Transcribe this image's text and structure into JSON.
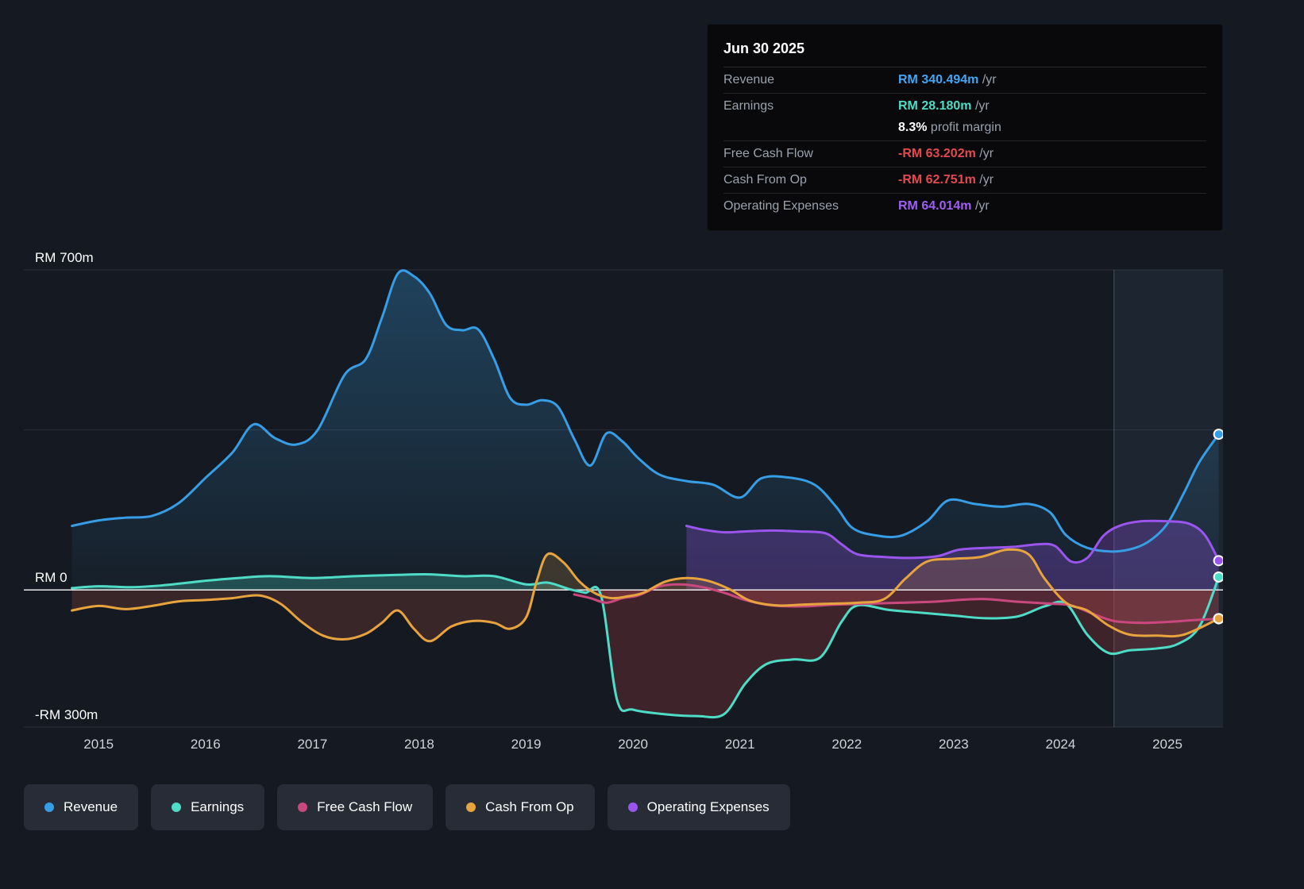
{
  "colors": {
    "background": "#151a22",
    "grid": "#2a303b",
    "zero_line": "#ffffff",
    "axis_text": "#ced3da",
    "y_label_text": "#ffffff",
    "muted_text": "#9aa2ad",
    "tooltip_bg": "#09090b",
    "pill_bg": "#272c36",
    "highlight_band": "rgba(110,150,200,0.09)",
    "highlight_edge": "rgba(210,225,240,0.25)"
  },
  "tooltip": {
    "date": "Jun 30 2025",
    "rows": [
      {
        "label": "Revenue",
        "value": "RM 340.494m",
        "suffix": " /yr",
        "color": "#40a6f5",
        "grouped": false
      },
      {
        "label": "Earnings",
        "value": "RM 28.180m",
        "suffix": " /yr",
        "color": "#4fdcc7",
        "grouped": false
      },
      {
        "label": "",
        "value": "8.3%",
        "suffix": " profit margin",
        "color": "#ffffff",
        "grouped": true
      },
      {
        "label": "Free Cash Flow",
        "value": "-RM 63.202m",
        "suffix": " /yr",
        "color": "#e5494d",
        "grouped": false
      },
      {
        "label": "Cash From Op",
        "value": "-RM 62.751m",
        "suffix": " /yr",
        "color": "#e5494d",
        "grouped": false
      },
      {
        "label": "Operating Expenses",
        "value": "RM 64.014m",
        "suffix": " /yr",
        "color": "#a05ef5",
        "grouped": false
      }
    ]
  },
  "legend": [
    {
      "label": "Revenue",
      "color": "#379de4"
    },
    {
      "label": "Earnings",
      "color": "#4fdcc7"
    },
    {
      "label": "Free Cash Flow",
      "color": "#c9497e"
    },
    {
      "label": "Cash From Op",
      "color": "#e7a33e"
    },
    {
      "label": "Operating Expenses",
      "color": "#9a55ec"
    }
  ],
  "chart_data": {
    "type": "area",
    "unit": "RM millions per year",
    "x_domain": [
      2014.3,
      2025.52
    ],
    "y_domain": [
      -300,
      700
    ],
    "x_ticks": [
      2015,
      2016,
      2017,
      2018,
      2019,
      2020,
      2021,
      2022,
      2023,
      2024,
      2025
    ],
    "y_ticks": [
      {
        "value": 700,
        "label": "RM 700m"
      },
      {
        "value": 0,
        "label": "RM 0"
      },
      {
        "value": -300,
        "label": "-RM 300m"
      }
    ],
    "gridlines": [
      700,
      350,
      -300
    ],
    "highlight_start_year": 2024.5,
    "legend_position": "bottom",
    "series": [
      {
        "name": "Revenue",
        "color": "#379de4",
        "line_width": 3,
        "fill_gradient": [
          "rgba(54,152,217,0.32)",
          "rgba(54,152,217,0.04)"
        ],
        "fill_neg": null,
        "points": [
          [
            2014.75,
            140
          ],
          [
            2015,
            152
          ],
          [
            2015.25,
            158
          ],
          [
            2015.5,
            162
          ],
          [
            2015.75,
            190
          ],
          [
            2016,
            245
          ],
          [
            2016.25,
            300
          ],
          [
            2016.45,
            362
          ],
          [
            2016.65,
            332
          ],
          [
            2016.85,
            318
          ],
          [
            2017.05,
            350
          ],
          [
            2017.3,
            470
          ],
          [
            2017.5,
            505
          ],
          [
            2017.65,
            595
          ],
          [
            2017.8,
            692
          ],
          [
            2017.95,
            686
          ],
          [
            2018.1,
            648
          ],
          [
            2018.25,
            580
          ],
          [
            2018.4,
            568
          ],
          [
            2018.55,
            570
          ],
          [
            2018.7,
            505
          ],
          [
            2018.85,
            420
          ],
          [
            2019,
            405
          ],
          [
            2019.15,
            415
          ],
          [
            2019.3,
            400
          ],
          [
            2019.45,
            330
          ],
          [
            2019.6,
            272
          ],
          [
            2019.75,
            342
          ],
          [
            2019.9,
            325
          ],
          [
            2020.05,
            288
          ],
          [
            2020.25,
            252
          ],
          [
            2020.5,
            238
          ],
          [
            2020.75,
            230
          ],
          [
            2021,
            202
          ],
          [
            2021.2,
            244
          ],
          [
            2021.45,
            246
          ],
          [
            2021.7,
            230
          ],
          [
            2021.9,
            182
          ],
          [
            2022.05,
            136
          ],
          [
            2022.25,
            120
          ],
          [
            2022.5,
            118
          ],
          [
            2022.75,
            150
          ],
          [
            2022.95,
            196
          ],
          [
            2023.2,
            188
          ],
          [
            2023.45,
            182
          ],
          [
            2023.7,
            188
          ],
          [
            2023.9,
            170
          ],
          [
            2024.05,
            120
          ],
          [
            2024.25,
            92
          ],
          [
            2024.5,
            84
          ],
          [
            2024.7,
            92
          ],
          [
            2024.85,
            110
          ],
          [
            2025,
            145
          ],
          [
            2025.15,
            210
          ],
          [
            2025.3,
            280
          ],
          [
            2025.48,
            340.494
          ]
        ],
        "end_value": 340.494
      },
      {
        "name": "Operating Expenses",
        "color": "#9a55ec",
        "line_width": 3,
        "fill_pos": "rgba(154,85,236,0.28)",
        "fill_neg": "rgba(154,85,236,0.2)",
        "points": [
          [
            2020.5,
            140
          ],
          [
            2020.65,
            132
          ],
          [
            2020.85,
            126
          ],
          [
            2021.05,
            128
          ],
          [
            2021.3,
            130
          ],
          [
            2021.55,
            128
          ],
          [
            2021.8,
            124
          ],
          [
            2021.95,
            100
          ],
          [
            2022.1,
            78
          ],
          [
            2022.35,
            72
          ],
          [
            2022.6,
            70
          ],
          [
            2022.85,
            74
          ],
          [
            2023.05,
            88
          ],
          [
            2023.3,
            92
          ],
          [
            2023.55,
            94
          ],
          [
            2023.8,
            100
          ],
          [
            2023.95,
            96
          ],
          [
            2024.1,
            62
          ],
          [
            2024.25,
            70
          ],
          [
            2024.4,
            118
          ],
          [
            2024.55,
            140
          ],
          [
            2024.75,
            150
          ],
          [
            2025,
            150
          ],
          [
            2025.2,
            145
          ],
          [
            2025.35,
            120
          ],
          [
            2025.48,
            64.014
          ]
        ],
        "end_value": 64.014
      },
      {
        "name": "Earnings",
        "color": "#4fdcc7",
        "line_width": 3,
        "fill_pos": "rgba(79,220,199,0.25)",
        "fill_neg": "rgba(229,73,77,0.2)",
        "points": [
          [
            2014.75,
            4
          ],
          [
            2015,
            8
          ],
          [
            2015.3,
            6
          ],
          [
            2015.6,
            10
          ],
          [
            2016,
            20
          ],
          [
            2016.3,
            26
          ],
          [
            2016.6,
            30
          ],
          [
            2017,
            26
          ],
          [
            2017.4,
            30
          ],
          [
            2017.8,
            33
          ],
          [
            2018.1,
            34
          ],
          [
            2018.4,
            30
          ],
          [
            2018.7,
            30
          ],
          [
            2019,
            12
          ],
          [
            2019.2,
            16
          ],
          [
            2019.4,
            2
          ],
          [
            2019.55,
            -6
          ],
          [
            2019.7,
            -12
          ],
          [
            2019.85,
            -240
          ],
          [
            2020,
            -262
          ],
          [
            2020.3,
            -272
          ],
          [
            2020.6,
            -276
          ],
          [
            2020.85,
            -272
          ],
          [
            2021.05,
            -205
          ],
          [
            2021.25,
            -162
          ],
          [
            2021.5,
            -152
          ],
          [
            2021.75,
            -148
          ],
          [
            2021.95,
            -70
          ],
          [
            2022.1,
            -34
          ],
          [
            2022.4,
            -44
          ],
          [
            2022.7,
            -50
          ],
          [
            2023,
            -56
          ],
          [
            2023.3,
            -62
          ],
          [
            2023.6,
            -58
          ],
          [
            2023.85,
            -36
          ],
          [
            2024.05,
            -30
          ],
          [
            2024.25,
            -98
          ],
          [
            2024.45,
            -138
          ],
          [
            2024.65,
            -132
          ],
          [
            2024.9,
            -128
          ],
          [
            2025.1,
            -118
          ],
          [
            2025.3,
            -80
          ],
          [
            2025.48,
            28.18
          ]
        ],
        "end_value": 28.18
      },
      {
        "name": "Free Cash Flow",
        "color": "#c9497e",
        "line_width": 3,
        "fill_pos": "rgba(201,73,126,0.12)",
        "fill_neg": "rgba(201,73,126,0.15)",
        "points": [
          [
            2019.45,
            -10
          ],
          [
            2019.6,
            -18
          ],
          [
            2019.75,
            -28
          ],
          [
            2019.9,
            -18
          ],
          [
            2020.05,
            -12
          ],
          [
            2020.25,
            8
          ],
          [
            2020.45,
            12
          ],
          [
            2020.65,
            6
          ],
          [
            2020.85,
            -6
          ],
          [
            2021.05,
            -22
          ],
          [
            2021.3,
            -34
          ],
          [
            2021.6,
            -36
          ],
          [
            2021.9,
            -32
          ],
          [
            2022.2,
            -30
          ],
          [
            2022.5,
            -28
          ],
          [
            2022.8,
            -26
          ],
          [
            2023.05,
            -22
          ],
          [
            2023.3,
            -20
          ],
          [
            2023.6,
            -26
          ],
          [
            2023.9,
            -30
          ],
          [
            2024.1,
            -34
          ],
          [
            2024.3,
            -52
          ],
          [
            2024.5,
            -68
          ],
          [
            2024.75,
            -72
          ],
          [
            2025,
            -70
          ],
          [
            2025.25,
            -66
          ],
          [
            2025.48,
            -63.202
          ]
        ],
        "end_value": -63.202
      },
      {
        "name": "Cash From Op",
        "color": "#e7a33e",
        "line_width": 3,
        "fill_pos": "rgba(231,163,62,0.18)",
        "fill_neg": "rgba(214,96,70,0.18)",
        "points": [
          [
            2014.75,
            -45
          ],
          [
            2015,
            -35
          ],
          [
            2015.25,
            -42
          ],
          [
            2015.5,
            -35
          ],
          [
            2015.75,
            -25
          ],
          [
            2016,
            -22
          ],
          [
            2016.25,
            -18
          ],
          [
            2016.5,
            -12
          ],
          [
            2016.7,
            -30
          ],
          [
            2016.9,
            -70
          ],
          [
            2017.1,
            -100
          ],
          [
            2017.3,
            -108
          ],
          [
            2017.5,
            -96
          ],
          [
            2017.65,
            -72
          ],
          [
            2017.8,
            -45
          ],
          [
            2017.95,
            -85
          ],
          [
            2018.1,
            -112
          ],
          [
            2018.3,
            -80
          ],
          [
            2018.5,
            -68
          ],
          [
            2018.7,
            -72
          ],
          [
            2018.85,
            -85
          ],
          [
            2019,
            -60
          ],
          [
            2019.1,
            20
          ],
          [
            2019.2,
            78
          ],
          [
            2019.35,
            60
          ],
          [
            2019.5,
            18
          ],
          [
            2019.65,
            -8
          ],
          [
            2019.8,
            -18
          ],
          [
            2019.95,
            -14
          ],
          [
            2020.1,
            -6
          ],
          [
            2020.3,
            18
          ],
          [
            2020.5,
            26
          ],
          [
            2020.7,
            20
          ],
          [
            2020.9,
            2
          ],
          [
            2021.1,
            -24
          ],
          [
            2021.35,
            -34
          ],
          [
            2021.6,
            -32
          ],
          [
            2021.85,
            -30
          ],
          [
            2022.1,
            -28
          ],
          [
            2022.35,
            -20
          ],
          [
            2022.55,
            25
          ],
          [
            2022.75,
            62
          ],
          [
            2023,
            68
          ],
          [
            2023.25,
            72
          ],
          [
            2023.5,
            88
          ],
          [
            2023.7,
            78
          ],
          [
            2023.85,
            25
          ],
          [
            2024.05,
            -28
          ],
          [
            2024.25,
            -45
          ],
          [
            2024.45,
            -78
          ],
          [
            2024.65,
            -98
          ],
          [
            2024.9,
            -100
          ],
          [
            2025.15,
            -98
          ],
          [
            2025.48,
            -62.751
          ]
        ],
        "end_value": -62.751
      }
    ]
  }
}
